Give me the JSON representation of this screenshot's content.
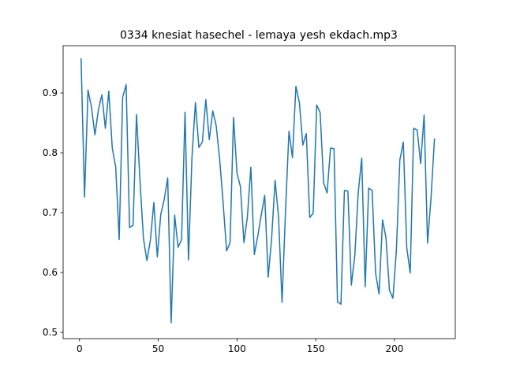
{
  "chart_data": {
    "type": "line",
    "title": "0334 knesiat hasechel - lemaya yesh ekdach.mp3",
    "x": [
      1,
      3.2,
      5.4,
      7.6,
      9.8,
      12,
      14.2,
      16.4,
      18.6,
      20.8,
      23,
      25.2,
      27.4,
      29.6,
      31.8,
      34,
      36.2,
      38.4,
      40.6,
      42.8,
      45,
      47.2,
      49.4,
      51.6,
      53.8,
      56,
      58.2,
      60.4,
      62.6,
      64.8,
      67,
      69.2,
      71.4,
      73.6,
      75.8,
      78,
      80.2,
      82.4,
      84.6,
      86.8,
      89,
      91.2,
      93.4,
      95.6,
      97.8,
      100,
      102.2,
      104.4,
      106.6,
      108.8,
      111,
      113.2,
      115.4,
      117.6,
      119.8,
      122,
      124.2,
      126.4,
      128.6,
      130.8,
      133,
      135.2,
      137.4,
      139.6,
      141.8,
      144,
      146.2,
      148.4,
      150.6,
      152.8,
      155,
      157.2,
      159.4,
      161.6,
      163.8,
      166,
      168.2,
      170.4,
      172.6,
      174.8,
      177,
      179.2,
      181.4,
      183.6,
      185.8,
      188,
      190.2,
      192.4,
      194.6,
      196.8,
      199,
      201.2,
      203.4,
      205.6,
      207.8,
      210,
      212.2,
      214.4,
      216.6,
      218.8,
      221,
      223.2,
      225.4
    ],
    "series": [
      {
        "color": "#1f77b4",
        "values": [
          0.958,
          0.726,
          0.905,
          0.876,
          0.83,
          0.872,
          0.897,
          0.841,
          0.903,
          0.808,
          0.776,
          0.655,
          0.893,
          0.914,
          0.675,
          0.679,
          0.864,
          0.753,
          0.657,
          0.62,
          0.654,
          0.717,
          0.626,
          0.697,
          0.722,
          0.758,
          0.516,
          0.696,
          0.642,
          0.655,
          0.868,
          0.621,
          0.792,
          0.884,
          0.809,
          0.818,
          0.889,
          0.822,
          0.87,
          0.845,
          0.789,
          0.716,
          0.636,
          0.65,
          0.859,
          0.766,
          0.743,
          0.65,
          0.693,
          0.776,
          0.63,
          0.661,
          0.696,
          0.729,
          0.592,
          0.658,
          0.754,
          0.692,
          0.55,
          0.703,
          0.836,
          0.792,
          0.911,
          0.884,
          0.813,
          0.832,
          0.692,
          0.699,
          0.88,
          0.867,
          0.75,
          0.733,
          0.808,
          0.807,
          0.551,
          0.547,
          0.737,
          0.736,
          0.579,
          0.628,
          0.734,
          0.791,
          0.576,
          0.741,
          0.737,
          0.599,
          0.564,
          0.688,
          0.658,
          0.57,
          0.557,
          0.637,
          0.788,
          0.818,
          0.641,
          0.599,
          0.841,
          0.838,
          0.782,
          0.863,
          0.649,
          0.725,
          0.824
        ]
      }
    ],
    "xlim": [
      -10.4,
      238.6
    ],
    "xticks": [
      0,
      50,
      100,
      150,
      200
    ],
    "ylim": [
      0.4895,
      0.979
    ],
    "yticks": [
      0.5,
      0.6,
      0.7,
      0.8,
      0.9
    ]
  }
}
